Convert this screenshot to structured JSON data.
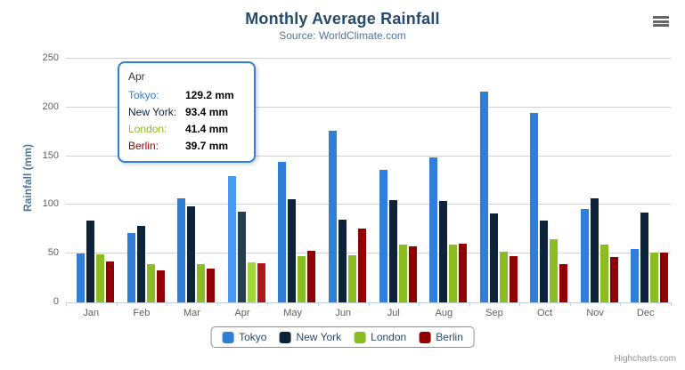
{
  "chart": {
    "title": "Monthly Average Rainfall",
    "subtitle": "Source: WorldClimate.com",
    "y_axis_title": "Rainfall (mm)",
    "credit": "Highcharts.com"
  },
  "chart_data": {
    "type": "bar",
    "title": "Monthly Average Rainfall",
    "subtitle": "Source: WorldClimate.com",
    "xlabel": "",
    "ylabel": "Rainfall (mm)",
    "ylim": [
      0,
      250
    ],
    "ytick_step": 50,
    "ytick_labels": [
      "0",
      "50",
      "100",
      "150",
      "200",
      "250"
    ],
    "grid": true,
    "legend_position": "bottom",
    "hovered_category": "Apr",
    "categories": [
      "Jan",
      "Feb",
      "Mar",
      "Apr",
      "May",
      "Jun",
      "Jul",
      "Aug",
      "Sep",
      "Oct",
      "Nov",
      "Dec"
    ],
    "series": [
      {
        "name": "Tokyo",
        "color": "#2f7ed8",
        "hover_color": "#4a98f2",
        "values": [
          49.9,
          71.5,
          106.4,
          129.2,
          144.0,
          176.0,
          135.6,
          148.5,
          216.4,
          194.1,
          95.6,
          54.4
        ]
      },
      {
        "name": "New York",
        "color": "#0d233a",
        "hover_color": "#273d54",
        "values": [
          83.6,
          78.8,
          98.5,
          93.4,
          106.0,
          84.5,
          105.0,
          104.3,
          91.2,
          83.5,
          106.6,
          92.3
        ]
      },
      {
        "name": "London",
        "color": "#8bbc21",
        "hover_color": "#a5d63b",
        "values": [
          48.9,
          38.8,
          39.3,
          41.4,
          47.0,
          48.3,
          59.0,
          59.6,
          52.4,
          65.2,
          59.3,
          51.2
        ]
      },
      {
        "name": "Berlin",
        "color": "#910000",
        "hover_color": "#ab1a1a",
        "values": [
          42.4,
          33.2,
          34.5,
          39.7,
          52.6,
          75.5,
          57.4,
          60.4,
          47.6,
          39.1,
          46.8,
          51.1
        ]
      }
    ]
  },
  "tooltip": {
    "header": "Apr",
    "rows": [
      {
        "label": "Tokyo:",
        "value": "129.2 mm",
        "color": "#2f7ed8"
      },
      {
        "label": "New York:",
        "value": "93.4 mm",
        "color": "#0d233a"
      },
      {
        "label": "London:",
        "value": "41.4 mm",
        "color": "#8bbc21"
      },
      {
        "label": "Berlin:",
        "value": "39.7 mm",
        "color": "#910000"
      }
    ]
  },
  "legend": {
    "items": [
      {
        "label": "Tokyo",
        "color": "#2f7ed8"
      },
      {
        "label": "New York",
        "color": "#0d233a"
      },
      {
        "label": "London",
        "color": "#8bbc21"
      },
      {
        "label": "Berlin",
        "color": "#910000"
      }
    ]
  }
}
